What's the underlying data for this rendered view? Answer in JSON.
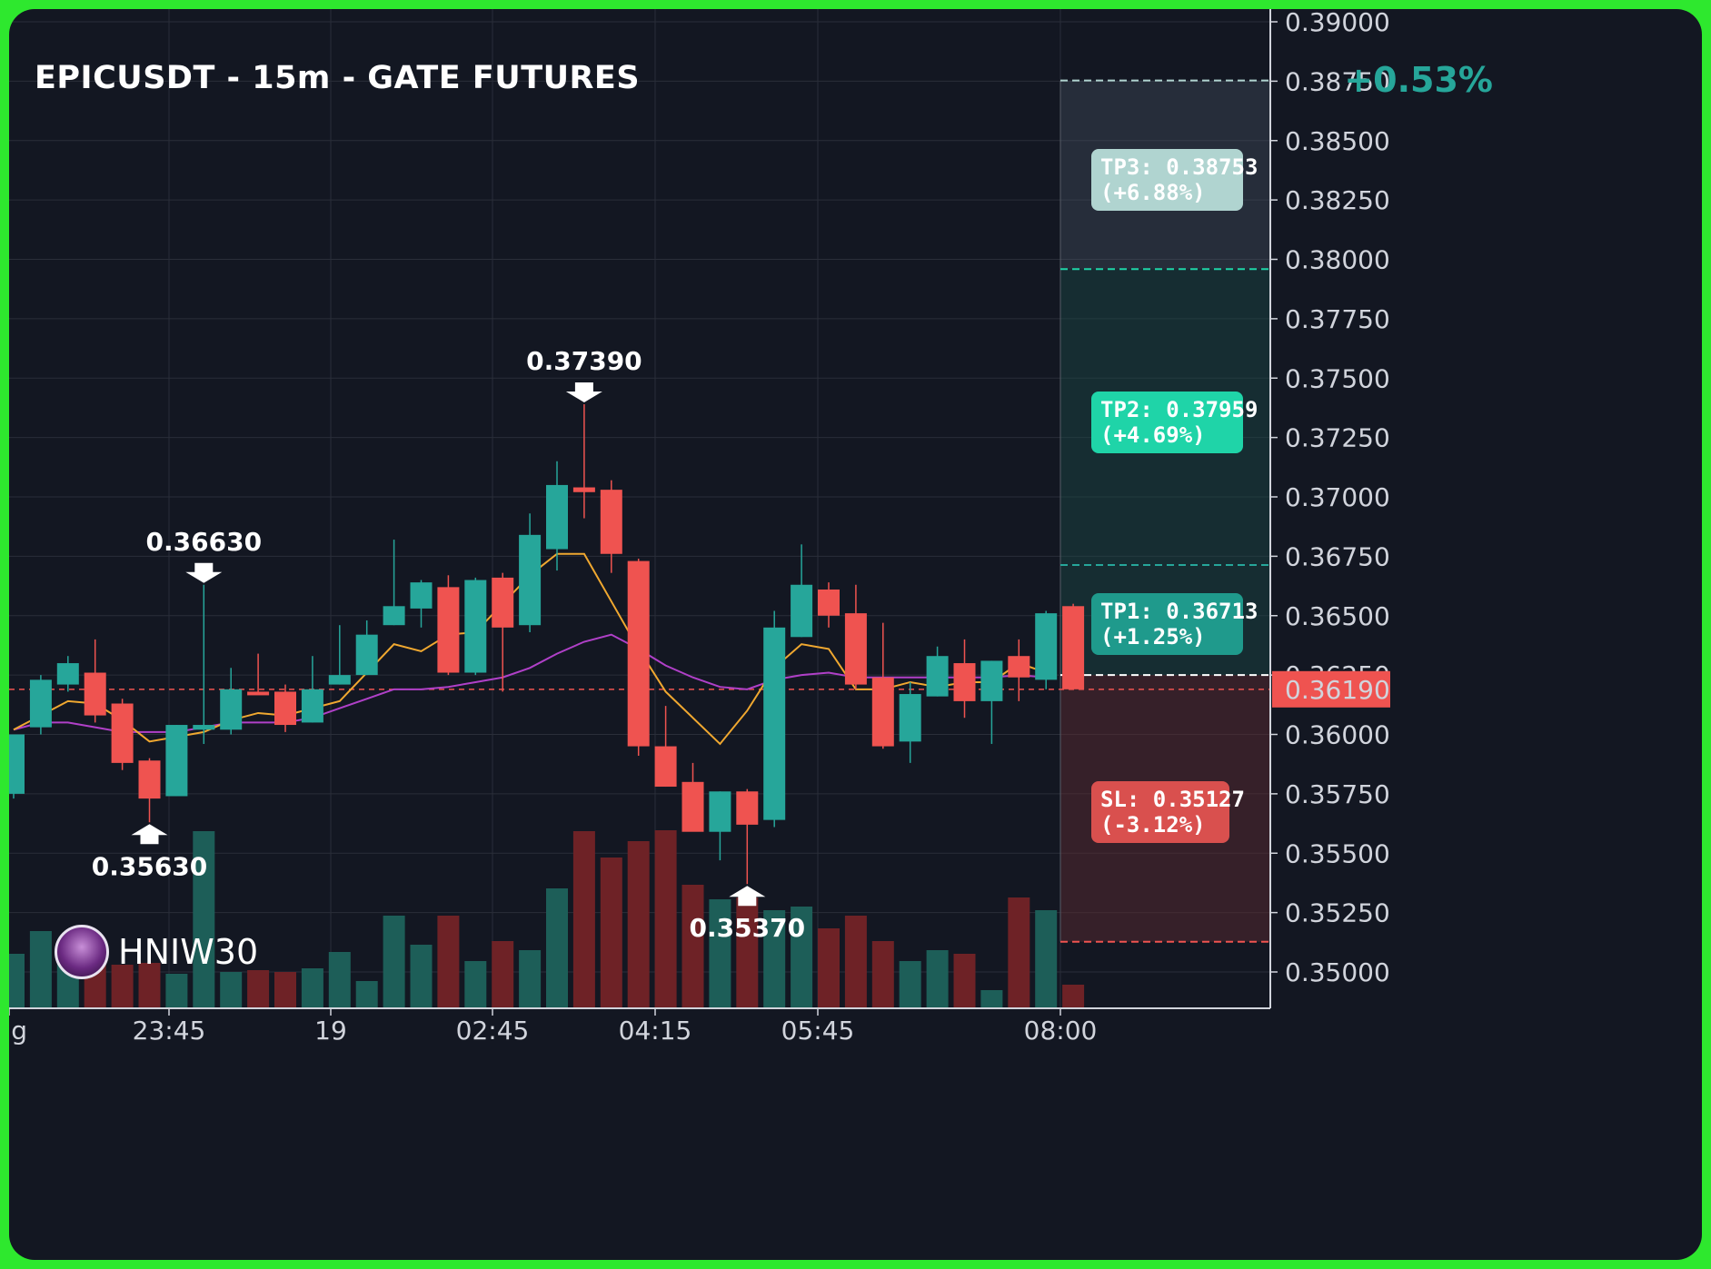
{
  "header": {
    "title": "EPICUSDT - 15m - GATE FUTURES",
    "change": "+0.53%"
  },
  "watermark": {
    "name": "HNIW30"
  },
  "targets": [
    {
      "label": "TP3: 0.38753\n(+6.88%)",
      "price": 0.38753,
      "color": "#b0d4d0"
    },
    {
      "label": "TP2: 0.37959\n(+4.69%)",
      "price": 0.37959,
      "color": "#1fd4a8"
    },
    {
      "label": "TP1: 0.36713\n(+1.25%)",
      "price": 0.36713,
      "color": "#1f9a8c"
    },
    {
      "label": "SL: 0.35127\n(-3.12%)",
      "price": 0.35127,
      "color": "#d9504e"
    }
  ],
  "entry_price": 0.3625,
  "colors": {
    "up": "#26a69a",
    "down": "#ef5350",
    "ema_fast": "#f0a830",
    "ema_slow": "#b040c8",
    "grid": "#2a2e39",
    "axis_text": "#d1d4dc"
  },
  "chart_data": {
    "type": "candlestick",
    "title": "EPICUSDT - 15m - GATE FUTURES",
    "ylim": [
      0.3488,
      0.3908
    ],
    "yticks": [
      "0.39000",
      "0.38750",
      "0.38500",
      "0.38250",
      "0.38000",
      "0.37750",
      "0.37500",
      "0.37250",
      "0.37000",
      "0.36750",
      "0.36500",
      "0.36250",
      "0.36000",
      "0.35750",
      "0.35500",
      "0.35250",
      "0.35000"
    ],
    "xticks": [
      "ug",
      "23:45",
      "19",
      "02:45",
      "04:15",
      "05:45",
      "08:00"
    ],
    "current_price": "0.36190",
    "annotations": [
      {
        "text": "0.36630",
        "price": 0.3663,
        "type": "high",
        "index": 7
      },
      {
        "text": "0.35630",
        "price": 0.3563,
        "type": "low",
        "index": 5
      },
      {
        "text": "0.37390",
        "price": 0.3739,
        "type": "high",
        "index": 21
      },
      {
        "text": "0.35370",
        "price": 0.3537,
        "type": "low",
        "index": 27
      }
    ],
    "candles": [
      {
        "o": 0.3575,
        "h": 0.36,
        "l": 0.3573,
        "c": 0.36
      },
      {
        "o": 0.3603,
        "h": 0.3625,
        "l": 0.36,
        "c": 0.3623
      },
      {
        "o": 0.3621,
        "h": 0.3633,
        "l": 0.3618,
        "c": 0.363
      },
      {
        "o": 0.3626,
        "h": 0.364,
        "l": 0.3605,
        "c": 0.3608
      },
      {
        "o": 0.3613,
        "h": 0.3615,
        "l": 0.3585,
        "c": 0.3588
      },
      {
        "o": 0.3589,
        "h": 0.359,
        "l": 0.3563,
        "c": 0.3573
      },
      {
        "o": 0.3574,
        "h": 0.3604,
        "l": 0.3574,
        "c": 0.3604
      },
      {
        "o": 0.3602,
        "h": 0.3663,
        "l": 0.3596,
        "c": 0.3604
      },
      {
        "o": 0.3602,
        "h": 0.3628,
        "l": 0.36,
        "c": 0.3619
      },
      {
        "o": 0.3618,
        "h": 0.3634,
        "l": 0.3617,
        "c": 0.3617
      },
      {
        "o": 0.3618,
        "h": 0.3621,
        "l": 0.3601,
        "c": 0.3604
      },
      {
        "o": 0.3605,
        "h": 0.3633,
        "l": 0.3605,
        "c": 0.3619
      },
      {
        "o": 0.3621,
        "h": 0.3646,
        "l": 0.3621,
        "c": 0.3625
      },
      {
        "o": 0.3625,
        "h": 0.3648,
        "l": 0.3625,
        "c": 0.3642
      },
      {
        "o": 0.3646,
        "h": 0.3682,
        "l": 0.3646,
        "c": 0.3654
      },
      {
        "o": 0.3653,
        "h": 0.3665,
        "l": 0.3645,
        "c": 0.3664
      },
      {
        "o": 0.3662,
        "h": 0.3667,
        "l": 0.3625,
        "c": 0.3626
      },
      {
        "o": 0.3626,
        "h": 0.3666,
        "l": 0.3625,
        "c": 0.3665
      },
      {
        "o": 0.3666,
        "h": 0.3668,
        "l": 0.3618,
        "c": 0.3645
      },
      {
        "o": 0.3646,
        "h": 0.3693,
        "l": 0.3643,
        "c": 0.3684
      },
      {
        "o": 0.3678,
        "h": 0.3715,
        "l": 0.3669,
        "c": 0.3705
      },
      {
        "o": 0.3704,
        "h": 0.3739,
        "l": 0.3691,
        "c": 0.3702
      },
      {
        "o": 0.3703,
        "h": 0.3707,
        "l": 0.3668,
        "c": 0.3676
      },
      {
        "o": 0.3673,
        "h": 0.3674,
        "l": 0.3591,
        "c": 0.3595
      },
      {
        "o": 0.3595,
        "h": 0.3612,
        "l": 0.3578,
        "c": 0.3578
      },
      {
        "o": 0.358,
        "h": 0.3588,
        "l": 0.3563,
        "c": 0.3559
      },
      {
        "o": 0.3559,
        "h": 0.3576,
        "l": 0.3547,
        "c": 0.3576
      },
      {
        "o": 0.3576,
        "h": 0.3577,
        "l": 0.3537,
        "c": 0.3562
      },
      {
        "o": 0.3564,
        "h": 0.3652,
        "l": 0.3561,
        "c": 0.3645
      },
      {
        "o": 0.3641,
        "h": 0.368,
        "l": 0.3641,
        "c": 0.3663
      },
      {
        "o": 0.3661,
        "h": 0.3664,
        "l": 0.3645,
        "c": 0.365
      },
      {
        "o": 0.3651,
        "h": 0.3663,
        "l": 0.3619,
        "c": 0.3621
      },
      {
        "o": 0.3624,
        "h": 0.3647,
        "l": 0.3594,
        "c": 0.3595
      },
      {
        "o": 0.3597,
        "h": 0.3622,
        "l": 0.3588,
        "c": 0.3617
      },
      {
        "o": 0.3616,
        "h": 0.3637,
        "l": 0.3616,
        "c": 0.3633
      },
      {
        "o": 0.363,
        "h": 0.364,
        "l": 0.3607,
        "c": 0.3614
      },
      {
        "o": 0.3614,
        "h": 0.3631,
        "l": 0.3596,
        "c": 0.3631
      },
      {
        "o": 0.3633,
        "h": 0.364,
        "l": 0.3614,
        "c": 0.3624
      },
      {
        "o": 0.3623,
        "h": 0.3652,
        "l": 0.3619,
        "c": 0.3651
      },
      {
        "o": 0.3654,
        "h": 0.3655,
        "l": 0.3619,
        "c": 0.3619
      }
    ],
    "volume": [
      {
        "v": 60,
        "up": true
      },
      {
        "v": 85,
        "up": true
      },
      {
        "v": 58,
        "up": true
      },
      {
        "v": 70,
        "up": false
      },
      {
        "v": 48,
        "up": false
      },
      {
        "v": 50,
        "up": false
      },
      {
        "v": 38,
        "up": true
      },
      {
        "v": 195,
        "up": true
      },
      {
        "v": 40,
        "up": true
      },
      {
        "v": 42,
        "up": false
      },
      {
        "v": 40,
        "up": false
      },
      {
        "v": 44,
        "up": true
      },
      {
        "v": 62,
        "up": true
      },
      {
        "v": 30,
        "up": true
      },
      {
        "v": 102,
        "up": true
      },
      {
        "v": 70,
        "up": true
      },
      {
        "v": 102,
        "up": false
      },
      {
        "v": 52,
        "up": true
      },
      {
        "v": 74,
        "up": false
      },
      {
        "v": 64,
        "up": true
      },
      {
        "v": 132,
        "up": true
      },
      {
        "v": 195,
        "up": false
      },
      {
        "v": 166,
        "up": false
      },
      {
        "v": 184,
        "up": false
      },
      {
        "v": 196,
        "up": false
      },
      {
        "v": 136,
        "up": false
      },
      {
        "v": 120,
        "up": true
      },
      {
        "v": 122,
        "up": false
      },
      {
        "v": 108,
        "up": true
      },
      {
        "v": 112,
        "up": true
      },
      {
        "v": 88,
        "up": false
      },
      {
        "v": 102,
        "up": false
      },
      {
        "v": 74,
        "up": false
      },
      {
        "v": 52,
        "up": true
      },
      {
        "v": 64,
        "up": true
      },
      {
        "v": 60,
        "up": false
      },
      {
        "v": 20,
        "up": true
      },
      {
        "v": 122,
        "up": false
      },
      {
        "v": 108,
        "up": true
      },
      {
        "v": 26,
        "up": false
      }
    ],
    "ema_fast": [
      0.3602,
      0.3608,
      0.3614,
      0.3613,
      0.3606,
      0.3597,
      0.3599,
      0.3601,
      0.3606,
      0.3609,
      0.3608,
      0.3611,
      0.3614,
      0.3626,
      0.3638,
      0.3635,
      0.3642,
      0.3643,
      0.3655,
      0.3667,
      0.3676,
      0.3676,
      0.3656,
      0.3636,
      0.3618,
      0.3607,
      0.3596,
      0.361,
      0.3628,
      0.3638,
      0.3636,
      0.3619,
      0.3619,
      0.3622,
      0.362,
      0.3622,
      0.3622,
      0.363,
      0.3626
    ],
    "ema_slow": [
      0.3602,
      0.3605,
      0.3605,
      0.3603,
      0.3601,
      0.3601,
      0.3601,
      0.3603,
      0.3605,
      0.3605,
      0.3605,
      0.3607,
      0.3611,
      0.3615,
      0.3619,
      0.3619,
      0.362,
      0.3622,
      0.3624,
      0.3628,
      0.3634,
      0.3639,
      0.3642,
      0.3636,
      0.3629,
      0.3624,
      0.362,
      0.3619,
      0.3623,
      0.3625,
      0.3626,
      0.3624,
      0.3624,
      0.3624,
      0.3624,
      0.3624,
      0.3624,
      0.3625,
      0.3624
    ]
  }
}
